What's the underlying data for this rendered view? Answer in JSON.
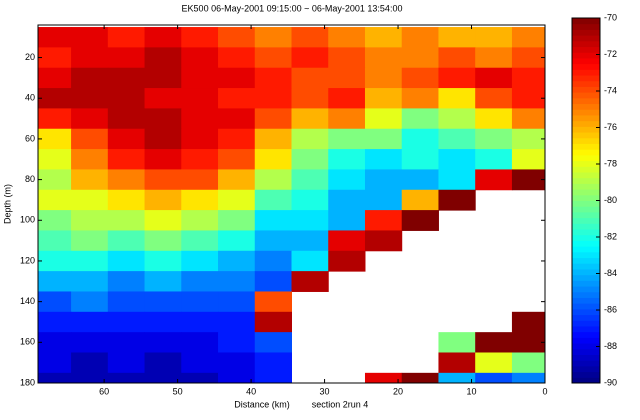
{
  "chart_data": {
    "type": "heatmap",
    "title": "EK500  06-May-2001 09:15:00 ~ 06-May-2001 13:54:00",
    "xlabel": "Distance (km)",
    "subtitle": "section 2run 4",
    "ylabel": "Depth (m)",
    "x": [
      67,
      62,
      57,
      52,
      47,
      42,
      37,
      32,
      27,
      22,
      17,
      12,
      7,
      2
    ],
    "y": [
      10,
      20,
      30,
      40,
      50,
      60,
      70,
      80,
      90,
      100,
      110,
      120,
      130,
      140,
      150,
      160,
      170,
      180
    ],
    "z": [
      [
        -72,
        -72,
        -73,
        -72,
        -73,
        -74,
        -75,
        -74,
        -75,
        -76,
        -75,
        -76,
        -76,
        -75
      ],
      [
        -73,
        -72,
        -72,
        -71,
        -72,
        -73,
        -74,
        -73,
        -74,
        -75,
        -75,
        -74,
        -75,
        -74
      ],
      [
        -72,
        -71,
        -71,
        -71,
        -72,
        -72,
        -73,
        -74,
        -74,
        -75,
        -74,
        -73,
        -72,
        -73
      ],
      [
        -71,
        -71,
        -71,
        -72,
        -72,
        -73,
        -73,
        -74,
        -73,
        -76,
        -75,
        -77,
        -74,
        -73
      ],
      [
        -73,
        -72,
        -71,
        -71,
        -72,
        -72,
        -74,
        -76,
        -75,
        -78,
        -80,
        -79,
        -77,
        -75
      ],
      [
        -77,
        -74,
        -72,
        -71,
        -72,
        -73,
        -76,
        -79,
        -80,
        -80,
        -82,
        -81,
        -80,
        -79
      ],
      [
        -78,
        -75,
        -73,
        -72,
        -73,
        -74,
        -77,
        -80,
        -82,
        -83,
        -82,
        -83,
        -82,
        -78
      ],
      [
        -79,
        -76,
        -75,
        -74,
        -74,
        -76,
        -79,
        -81,
        -83,
        -84,
        -84,
        -83,
        -72,
        -70
      ],
      [
        -78,
        -78,
        -77,
        -76,
        -77,
        -78,
        -81,
        -82,
        -84,
        -84,
        -76,
        -70,
        null,
        null
      ],
      [
        -80,
        -79,
        -79,
        -78,
        -79,
        -80,
        -83,
        -83,
        -84,
        -73,
        -70,
        null,
        null,
        null
      ],
      [
        -81,
        -80,
        -81,
        -80,
        -81,
        -82,
        -84,
        -84,
        -72,
        -71,
        null,
        null,
        null,
        null
      ],
      [
        -82,
        -82,
        -83,
        -82,
        -83,
        -84,
        -85,
        -83,
        -71,
        null,
        null,
        null,
        null,
        null
      ],
      [
        -84,
        -84,
        -85,
        -84,
        -85,
        -85,
        -86,
        -71,
        null,
        null,
        null,
        null,
        null,
        null
      ],
      [
        -86,
        -85,
        -86,
        -86,
        -86,
        -86,
        -74,
        null,
        null,
        null,
        null,
        null,
        null,
        null
      ],
      [
        -87,
        -87,
        -87,
        -87,
        -87,
        -87,
        -71,
        null,
        null,
        null,
        null,
        null,
        null,
        -70
      ],
      [
        -88,
        -88,
        -88,
        -88,
        -88,
        -87,
        -86,
        null,
        null,
        null,
        null,
        -80,
        -70,
        -70
      ],
      [
        -88,
        -89,
        -88,
        -89,
        -88,
        -88,
        -87,
        null,
        null,
        null,
        null,
        -71,
        -78,
        -80
      ],
      [
        -89,
        -89,
        -89,
        -89,
        -89,
        -88,
        -87,
        null,
        null,
        -72,
        -70,
        -84,
        -86,
        -85
      ]
    ],
    "cell_width": 5,
    "cell_height": 10,
    "xlim": [
      69,
      0
    ],
    "xticks": [
      60,
      50,
      40,
      30,
      20,
      10,
      0
    ],
    "ylim": [
      4,
      180
    ],
    "yticks": [
      20,
      40,
      60,
      80,
      100,
      120,
      140,
      160,
      180
    ],
    "clim": [
      -90,
      -70
    ],
    "cticks": [
      -70,
      -72,
      -74,
      -76,
      -78,
      -80,
      -82,
      -84,
      -86,
      -88,
      -90
    ],
    "colormap": "jet"
  }
}
